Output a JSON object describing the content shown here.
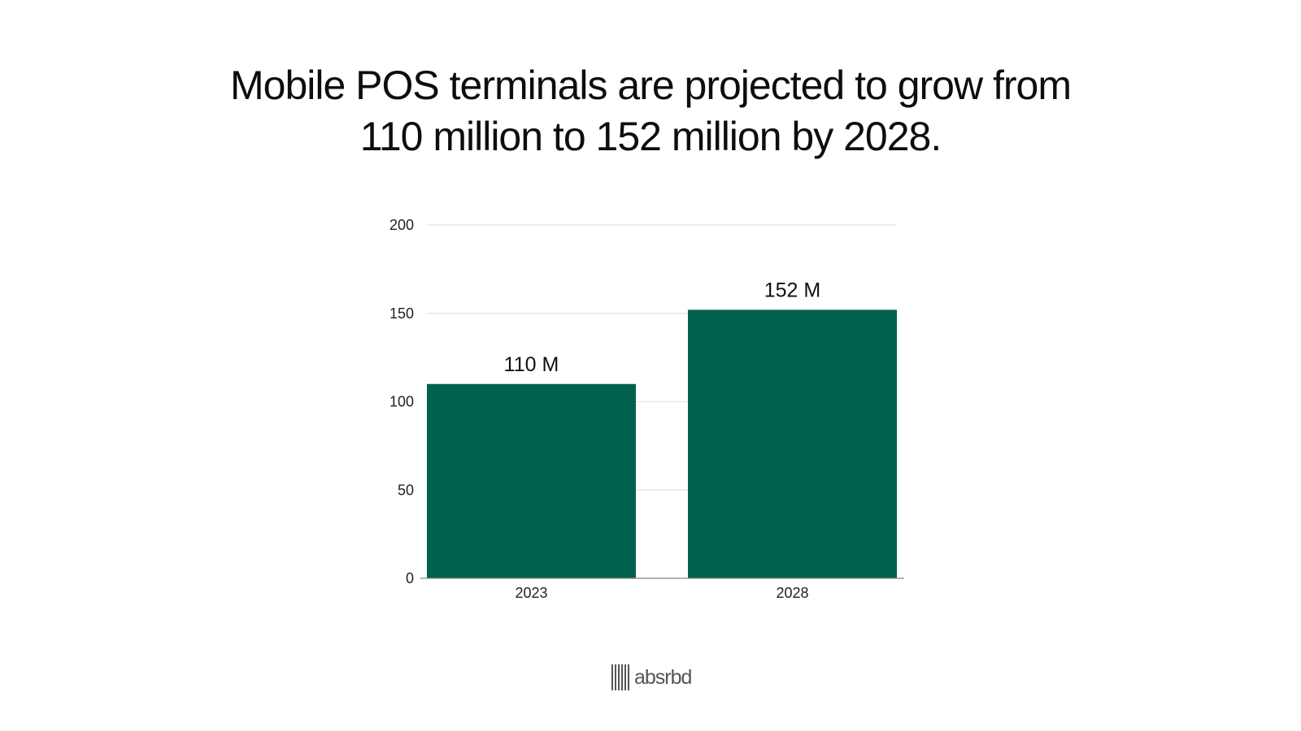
{
  "title_lines": [
    "Mobile POS terminals are projected to grow from",
    "110 million to 152 million by 2028."
  ],
  "brand": {
    "logo_text": "absrbd",
    "logo_color": "#555555"
  },
  "chart_data": {
    "type": "bar",
    "title": "Mobile POS terminals are projected to grow from 110 million to 152 million by 2028.",
    "categories": [
      "2023",
      "2028"
    ],
    "values": [
      110,
      152
    ],
    "data_labels": [
      "110 M",
      "152 M"
    ],
    "yticks": [
      0,
      50,
      100,
      150,
      200
    ],
    "ylim": [
      0,
      200
    ],
    "xlabel": "",
    "ylabel": "",
    "grid": true,
    "legend": "none",
    "bar_color": "#01614f",
    "grid_color": "#e3e3e3",
    "axis_color": "#888888"
  }
}
